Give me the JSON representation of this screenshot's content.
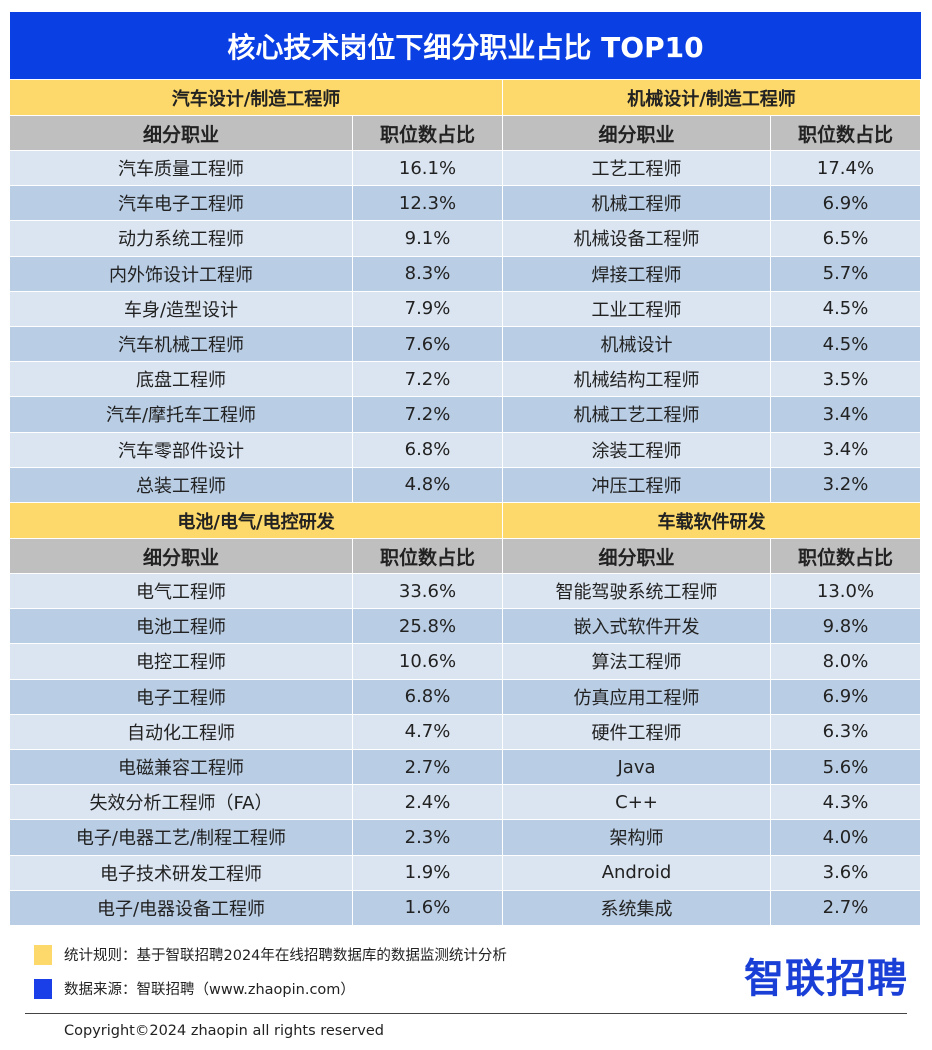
{
  "title": "核心技术岗位下细分职业占比 TOP10",
  "column_headers": {
    "job": "细分职业",
    "share": "职位数占比"
  },
  "sections": [
    {
      "name": "汽车设计/制造工程师",
      "rows": [
        [
          "汽车质量工程师",
          "16.1%"
        ],
        [
          "汽车电子工程师",
          "12.3%"
        ],
        [
          "动力系统工程师",
          "9.1%"
        ],
        [
          "内外饰设计工程师",
          "8.3%"
        ],
        [
          "车身/造型设计",
          "7.9%"
        ],
        [
          "汽车机械工程师",
          "7.6%"
        ],
        [
          "底盘工程师",
          "7.2%"
        ],
        [
          "汽车/摩托车工程师",
          "7.2%"
        ],
        [
          "汽车零部件设计",
          "6.8%"
        ],
        [
          "总装工程师",
          "4.8%"
        ]
      ]
    },
    {
      "name": "机械设计/制造工程师",
      "rows": [
        [
          "工艺工程师",
          "17.4%"
        ],
        [
          "机械工程师",
          "6.9%"
        ],
        [
          "机械设备工程师",
          "6.5%"
        ],
        [
          "焊接工程师",
          "5.7%"
        ],
        [
          "工业工程师",
          "4.5%"
        ],
        [
          "机械设计",
          "4.5%"
        ],
        [
          "机械结构工程师",
          "3.5%"
        ],
        [
          "机械工艺工程师",
          "3.4%"
        ],
        [
          "涂装工程师",
          "3.4%"
        ],
        [
          "冲压工程师",
          "3.2%"
        ]
      ]
    },
    {
      "name": "电池/电气/电控研发",
      "rows": [
        [
          "电气工程师",
          "33.6%"
        ],
        [
          "电池工程师",
          "25.8%"
        ],
        [
          "电控工程师",
          "10.6%"
        ],
        [
          "电子工程师",
          "6.8%"
        ],
        [
          "自动化工程师",
          "4.7%"
        ],
        [
          "电磁兼容工程师",
          "2.7%"
        ],
        [
          "失效分析工程师（FA）",
          "2.4%"
        ],
        [
          "电子/电器工艺/制程工程师",
          "2.3%"
        ],
        [
          "电子技术研发工程师",
          "1.9%"
        ],
        [
          "电子/电器设备工程师",
          "1.6%"
        ]
      ]
    },
    {
      "name": "车载软件研发",
      "rows": [
        [
          "智能驾驶系统工程师",
          "13.0%"
        ],
        [
          "嵌入式软件开发",
          "9.8%"
        ],
        [
          "算法工程师",
          "8.0%"
        ],
        [
          "仿真应用工程师",
          "6.9%"
        ],
        [
          "硬件工程师",
          "6.3%"
        ],
        [
          "Java",
          "5.6%"
        ],
        [
          "C++",
          "4.3%"
        ],
        [
          "架构师",
          "4.0%"
        ],
        [
          "Android",
          "3.6%"
        ],
        [
          "系统集成",
          "2.7%"
        ]
      ]
    }
  ],
  "footer": {
    "rule": "统计规则：基于智联招聘2024年在线招聘数据库的数据监测统计分析",
    "source": "数据来源：智联招聘（www.zhaopin.com）",
    "copyright": "Copyright©2024 zhaopin all rights reserved",
    "logo": "智联招聘"
  },
  "colors": {
    "title": "#0a3fe4",
    "section": "#fdd86a",
    "header": "#bfbfbf",
    "row_light": "#dbe5f1",
    "row_dark": "#b9cde4"
  }
}
